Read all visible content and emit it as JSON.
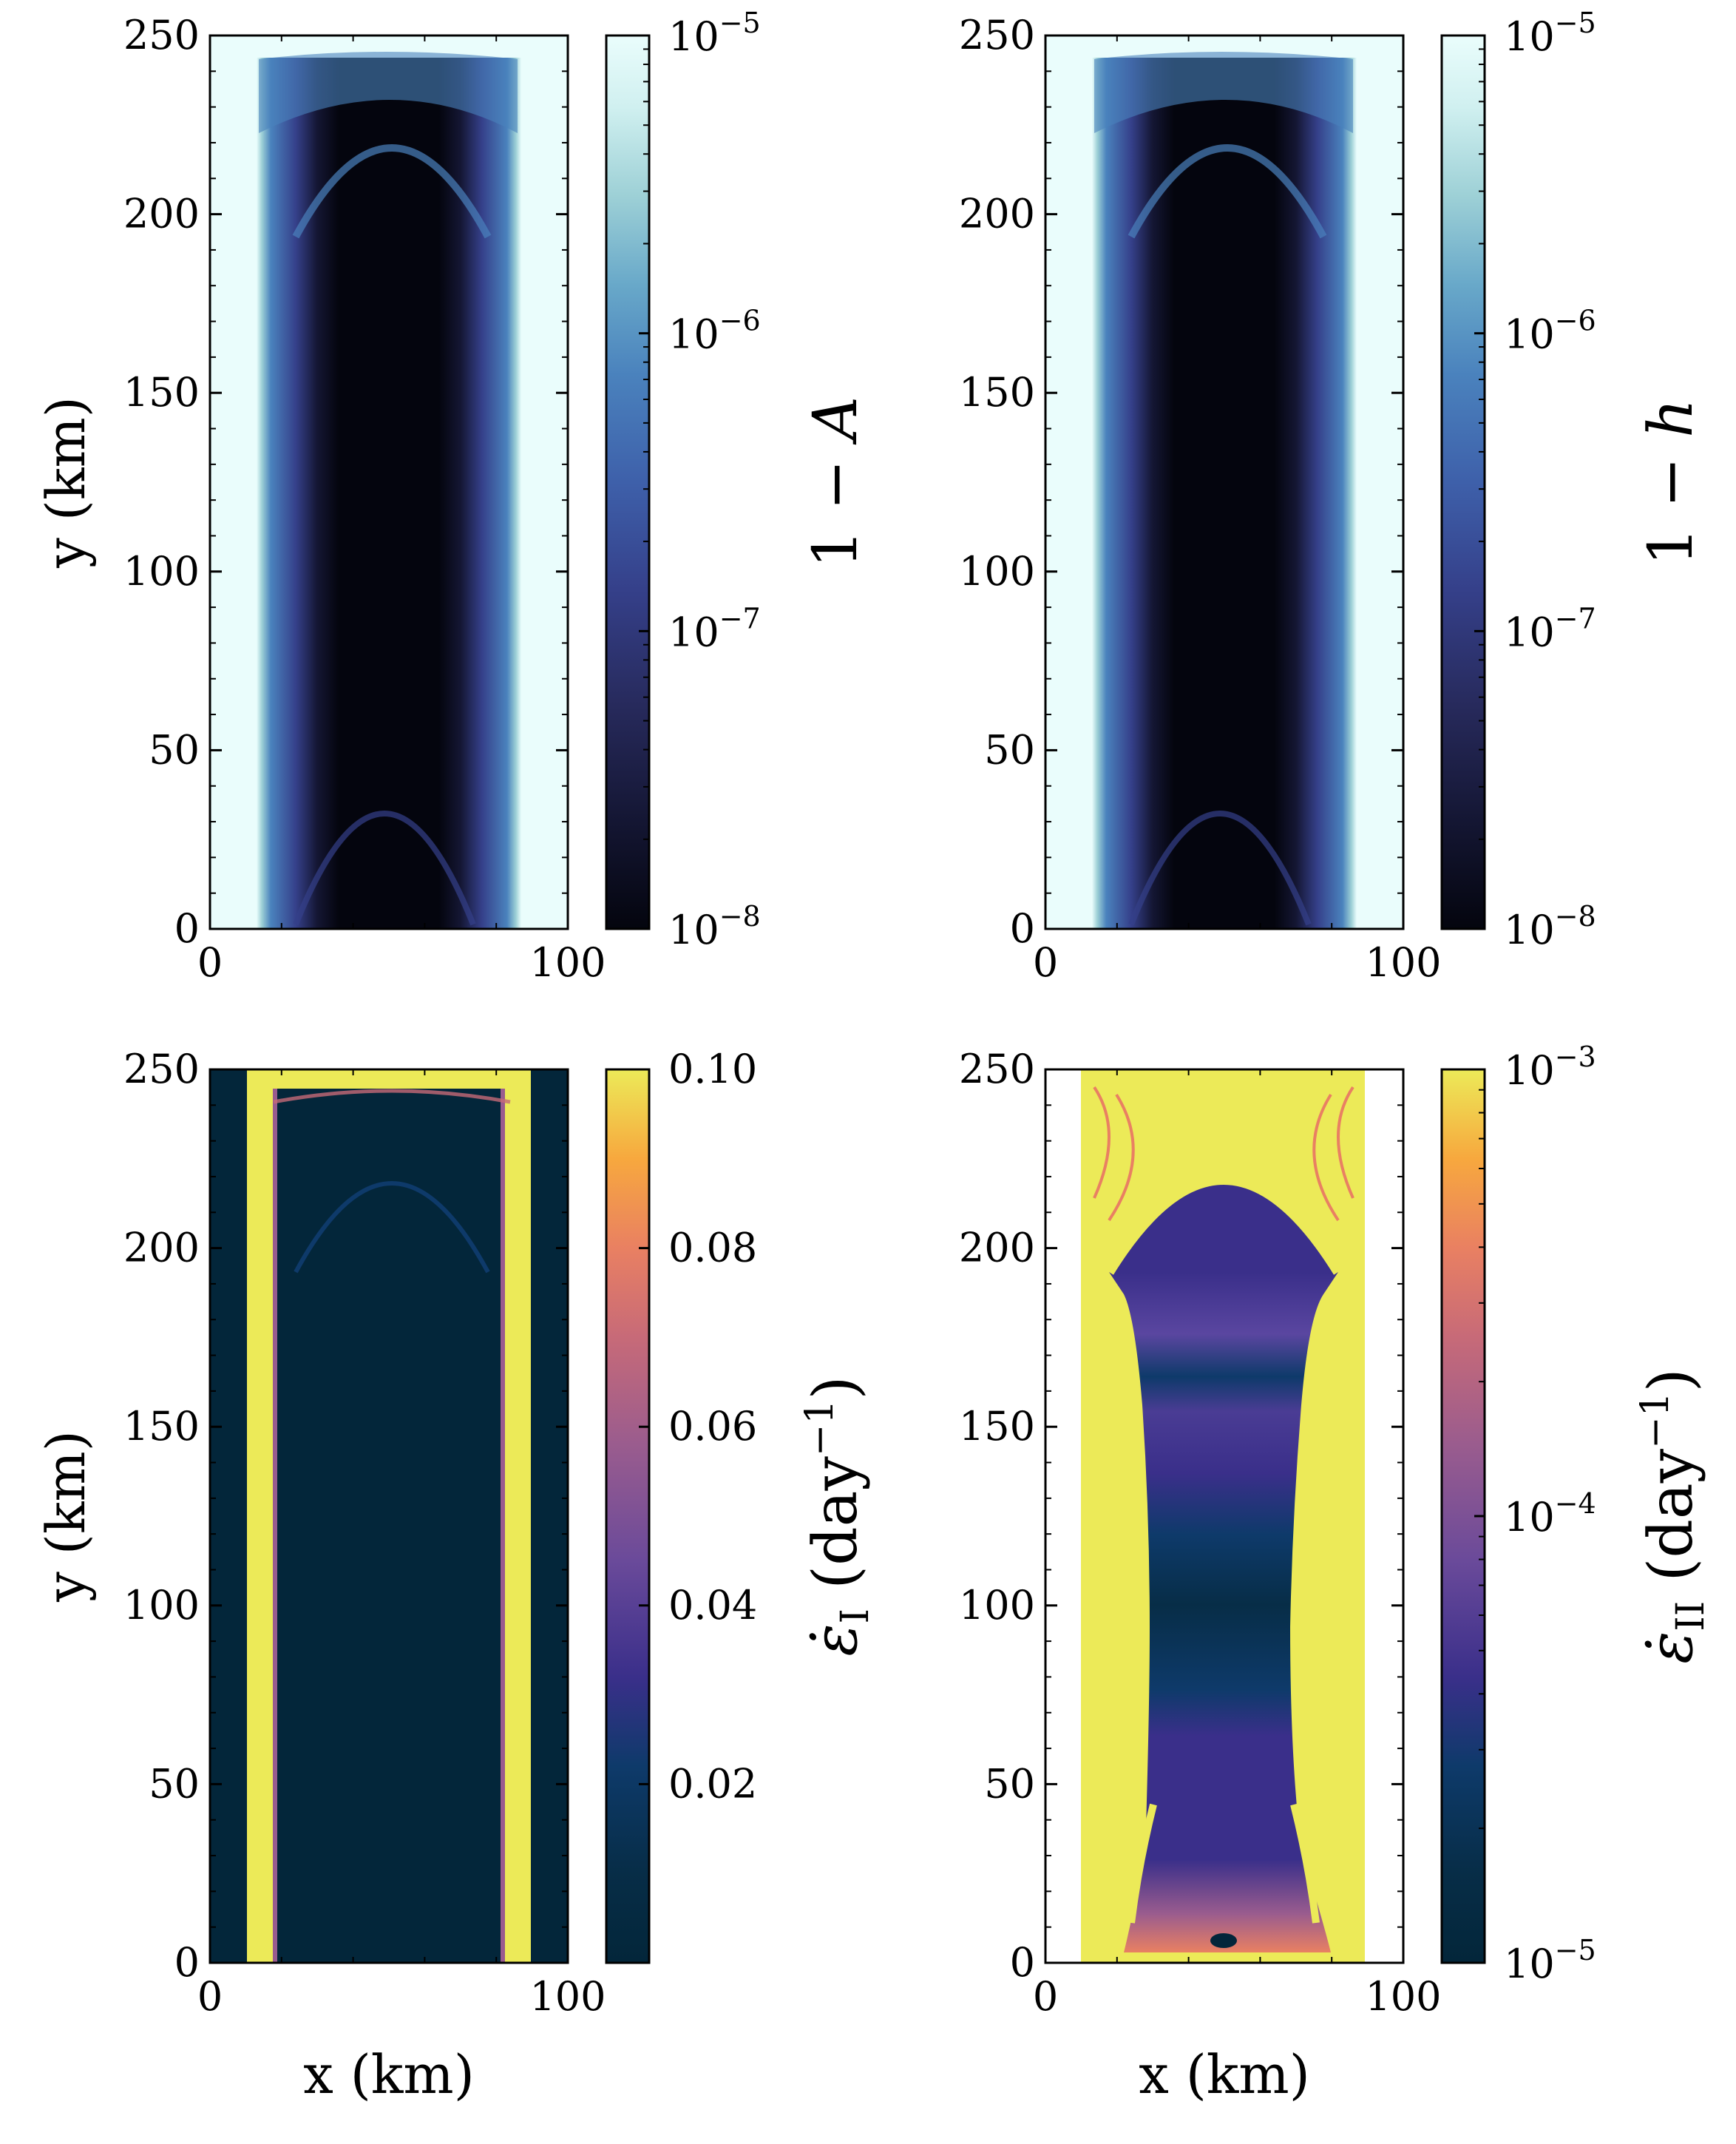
{
  "figure": {
    "colormaps": {
      "ice": [
        "#04050e",
        "#141633",
        "#272a5c",
        "#35408a",
        "#3e60aa",
        "#4a82bd",
        "#68a8c9",
        "#9dd0d6",
        "#d0f0f0",
        "#eafdfc"
      ],
      "cividis_dark": [
        "#03263a",
        "#072d47",
        "#0e3a6a",
        "#3a2f8a",
        "#6a4a9a",
        "#9a5c8e",
        "#c76a78",
        "#e98062",
        "#f7a83e",
        "#ecea58"
      ]
    }
  },
  "chart_data": [
    {
      "type": "heatmap",
      "panel": "top-left",
      "field": "1 - A",
      "xlabel": "",
      "ylabel": "y (km)",
      "xlim": [
        0,
        100
      ],
      "ylim": [
        0,
        250
      ],
      "xticks": [
        0,
        100
      ],
      "yticks": [
        0,
        50,
        100,
        150,
        200,
        250
      ],
      "colorbar": {
        "label_main": "1 − ",
        "label_var": "A",
        "scale": "log",
        "range": [
          1e-08,
          1e-05
        ],
        "ticks": [
          {
            "value": 1e-08,
            "base": "10",
            "exp": "−8"
          },
          {
            "value": 1e-07,
            "base": "10",
            "exp": "−7"
          },
          {
            "value": 1e-06,
            "base": "10",
            "exp": "−6"
          },
          {
            "value": 1e-05,
            "base": "10",
            "exp": "−5"
          }
        ],
        "colormap": "ice"
      }
    },
    {
      "type": "heatmap",
      "panel": "top-right",
      "field": "1 - h",
      "xlabel": "",
      "ylabel": "",
      "xlim": [
        0,
        100
      ],
      "ylim": [
        0,
        250
      ],
      "xticks": [
        0,
        100
      ],
      "yticks": [
        0,
        50,
        100,
        150,
        200,
        250
      ],
      "colorbar": {
        "label_main": "1 − ",
        "label_var": "h",
        "scale": "log",
        "range": [
          1e-08,
          1e-05
        ],
        "ticks": [
          {
            "value": 1e-08,
            "base": "10",
            "exp": "−8"
          },
          {
            "value": 1e-07,
            "base": "10",
            "exp": "−7"
          },
          {
            "value": 1e-06,
            "base": "10",
            "exp": "−6"
          },
          {
            "value": 1e-05,
            "base": "10",
            "exp": "−5"
          }
        ],
        "colormap": "ice"
      }
    },
    {
      "type": "heatmap",
      "panel": "bottom-left",
      "field": "ε̇_I",
      "xlabel": "x (km)",
      "ylabel": "y (km)",
      "xlim": [
        0,
        100
      ],
      "ylim": [
        0,
        250
      ],
      "xticks": [
        0,
        100
      ],
      "yticks": [
        0,
        50,
        100,
        150,
        200,
        250
      ],
      "colorbar": {
        "label_main": "ε̇",
        "label_sub": "I",
        "label_unit": " (day",
        "label_exp": "−1",
        "label_close": ")",
        "scale": "linear",
        "range": [
          0.0,
          0.1
        ],
        "ticks": [
          {
            "value": 0.02,
            "text": "0.02"
          },
          {
            "value": 0.04,
            "text": "0.04"
          },
          {
            "value": 0.06,
            "text": "0.06"
          },
          {
            "value": 0.08,
            "text": "0.08"
          },
          {
            "value": 0.1,
            "text": "0.10"
          }
        ],
        "colormap": "cividis_dark"
      }
    },
    {
      "type": "heatmap",
      "panel": "bottom-right",
      "field": "ε̇_II",
      "xlabel": "x (km)",
      "ylabel": "",
      "xlim": [
        0,
        100
      ],
      "ylim": [
        0,
        250
      ],
      "xticks": [
        0,
        100
      ],
      "yticks": [
        0,
        50,
        100,
        150,
        200,
        250
      ],
      "colorbar": {
        "label_main": "ε̇",
        "label_sub": "II",
        "label_unit": " (day",
        "label_exp": "−1",
        "label_close": ")",
        "scale": "log",
        "range": [
          1e-05,
          0.001
        ],
        "ticks": [
          {
            "value": 1e-05,
            "base": "10",
            "exp": "−5"
          },
          {
            "value": 0.0001,
            "base": "10",
            "exp": "−4"
          },
          {
            "value": 0.001,
            "base": "10",
            "exp": "−3"
          }
        ],
        "colormap": "cividis_dark"
      }
    }
  ]
}
